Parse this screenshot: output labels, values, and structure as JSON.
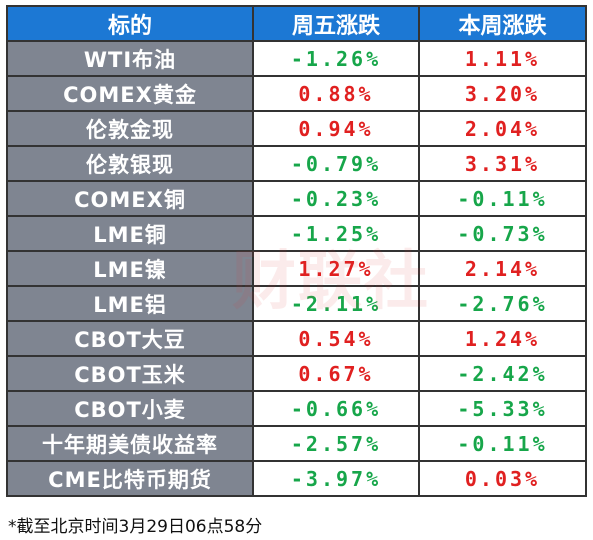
{
  "header": {
    "col1": "标的",
    "col2": "周五涨跌",
    "col3": "本周涨跌"
  },
  "rows": [
    {
      "name": "WTI布油",
      "fri": "-1.26%",
      "fri_dir": "down",
      "week": "1.11%",
      "week_dir": "up"
    },
    {
      "name": "COMEX黄金",
      "fri": "0.88%",
      "fri_dir": "up",
      "week": "3.20%",
      "week_dir": "up"
    },
    {
      "name": "伦敦金现",
      "fri": "0.94%",
      "fri_dir": "up",
      "week": "2.04%",
      "week_dir": "up"
    },
    {
      "name": "伦敦银现",
      "fri": "-0.79%",
      "fri_dir": "down",
      "week": "3.31%",
      "week_dir": "up"
    },
    {
      "name": "COMEX铜",
      "fri": "-0.23%",
      "fri_dir": "down",
      "week": "-0.11%",
      "week_dir": "down"
    },
    {
      "name": "LME铜",
      "fri": "-1.25%",
      "fri_dir": "down",
      "week": "-0.73%",
      "week_dir": "down"
    },
    {
      "name": "LME镍",
      "fri": "1.27%",
      "fri_dir": "up",
      "week": "2.14%",
      "week_dir": "up"
    },
    {
      "name": "LME铝",
      "fri": "-2.11%",
      "fri_dir": "down",
      "week": "-2.76%",
      "week_dir": "down"
    },
    {
      "name": "CBOT大豆",
      "fri": "0.54%",
      "fri_dir": "up",
      "week": "1.24%",
      "week_dir": "up"
    },
    {
      "name": "CBOT玉米",
      "fri": "0.67%",
      "fri_dir": "up",
      "week": "-2.42%",
      "week_dir": "down"
    },
    {
      "name": "CBOT小麦",
      "fri": "-0.66%",
      "fri_dir": "down",
      "week": "-5.33%",
      "week_dir": "down"
    },
    {
      "name": "十年期美债收益率",
      "fri": "-2.57%",
      "fri_dir": "down",
      "week": "-0.11%",
      "week_dir": "down"
    },
    {
      "name": "CME比特币期货",
      "fri": "-3.97%",
      "fri_dir": "down",
      "week": "0.03%",
      "week_dir": "up"
    }
  ],
  "footnote": "*截至北京时间3月29日06点58分",
  "watermark": "财联社",
  "colors": {
    "header_bg": "#1c78d4",
    "name_bg": "#7f8591",
    "up": "#e02020",
    "down": "#17a64a"
  }
}
